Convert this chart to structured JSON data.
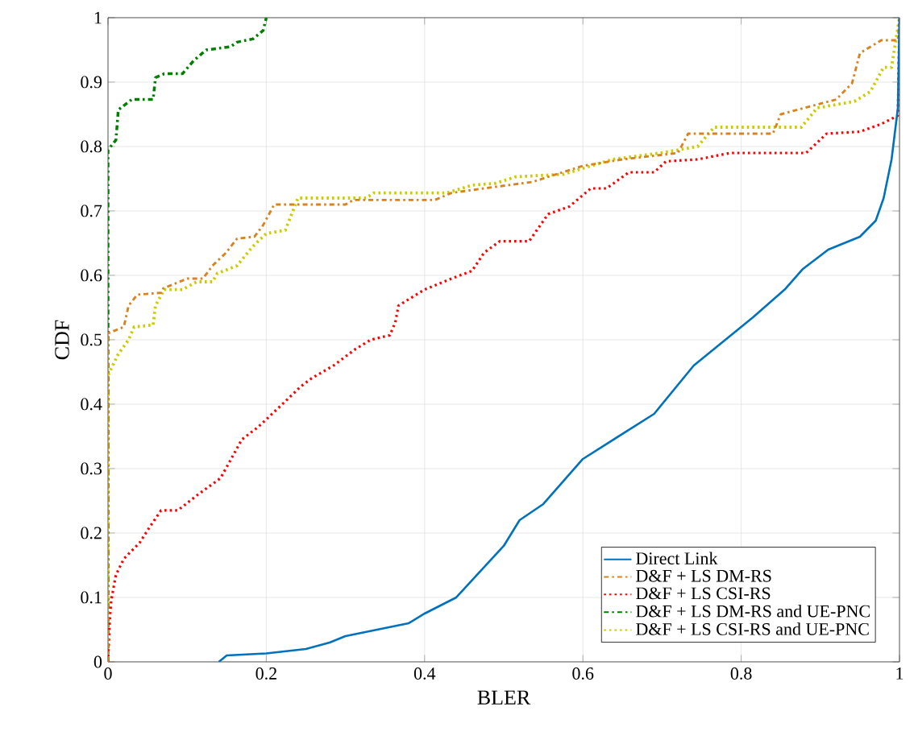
{
  "chart_data": {
    "type": "line",
    "xlabel": "BLER",
    "ylabel": "CDF",
    "xlim": [
      0,
      1
    ],
    "ylim": [
      0,
      1
    ],
    "xticks": [
      0,
      0.2,
      0.4,
      0.6,
      0.8,
      1
    ],
    "yticks": [
      0,
      0.1,
      0.2,
      0.3,
      0.4,
      0.5,
      0.6,
      0.7,
      0.8,
      0.9,
      1
    ],
    "grid": true,
    "legend": "bottom right",
    "marker": "none",
    "series": [
      {
        "name": "Direct Link",
        "color": "#0072bd",
        "line_style": "solid",
        "x": [
          0.14,
          0.15,
          0.2,
          0.25,
          0.28,
          0.3,
          0.34,
          0.38,
          0.4,
          0.44,
          0.47,
          0.5,
          0.52,
          0.55,
          0.6,
          0.69,
          0.74,
          0.79,
          0.815,
          0.855,
          0.878,
          0.91,
          0.95,
          0.97,
          0.98,
          0.99,
          0.998,
          1
        ],
        "values": [
          0,
          0.01,
          0.013,
          0.02,
          0.03,
          0.04,
          0.05,
          0.06,
          0.075,
          0.1,
          0.14,
          0.18,
          0.22,
          0.245,
          0.315,
          0.385,
          0.46,
          0.51,
          0.535,
          0.578,
          0.61,
          0.64,
          0.66,
          0.685,
          0.72,
          0.78,
          0.86,
          1
        ]
      },
      {
        "name": "D&F + LS DM-RS",
        "color": "#d9831f",
        "line_style": "dashdot",
        "x": [
          0,
          0,
          0.02,
          0.026,
          0.037,
          0.067,
          0.07,
          0.1,
          0.12,
          0.132,
          0.149,
          0.163,
          0.185,
          0.196,
          0.21,
          0.3,
          0.31,
          0.413,
          0.434,
          0.475,
          0.536,
          0.6,
          0.65,
          0.72,
          0.733,
          0.84,
          0.85,
          0.88,
          0.92,
          0.94,
          0.95,
          0.977,
          0.998,
          1
        ],
        "values": [
          0,
          0.51,
          0.52,
          0.553,
          0.57,
          0.573,
          0.58,
          0.595,
          0.595,
          0.615,
          0.635,
          0.657,
          0.66,
          0.678,
          0.71,
          0.71,
          0.717,
          0.717,
          0.728,
          0.735,
          0.745,
          0.77,
          0.78,
          0.79,
          0.82,
          0.82,
          0.85,
          0.86,
          0.873,
          0.898,
          0.945,
          0.965,
          0.965,
          1
        ]
      },
      {
        "name": "D&F + LS CSI-RS",
        "color": "#ff0000",
        "line_style": "dotted",
        "x": [
          0,
          0.002,
          0.004,
          0.01,
          0.02,
          0.04,
          0.053,
          0.067,
          0.088,
          0.114,
          0.142,
          0.152,
          0.169,
          0.19,
          0.216,
          0.244,
          0.257,
          0.285,
          0.312,
          0.332,
          0.356,
          0.363,
          0.367,
          0.4,
          0.434,
          0.46,
          0.475,
          0.495,
          0.532,
          0.556,
          0.583,
          0.61,
          0.63,
          0.658,
          0.69,
          0.705,
          0.745,
          0.786,
          0.882,
          0.908,
          0.95,
          0.977,
          0.998,
          1
        ],
        "values": [
          0,
          0.06,
          0.095,
          0.135,
          0.16,
          0.185,
          0.21,
          0.235,
          0.235,
          0.26,
          0.285,
          0.307,
          0.345,
          0.365,
          0.395,
          0.428,
          0.44,
          0.46,
          0.485,
          0.5,
          0.507,
          0.527,
          0.553,
          0.578,
          0.595,
          0.607,
          0.635,
          0.653,
          0.653,
          0.695,
          0.707,
          0.735,
          0.735,
          0.76,
          0.76,
          0.777,
          0.78,
          0.79,
          0.79,
          0.82,
          0.823,
          0.835,
          0.848,
          1
        ]
      },
      {
        "name": "D&F + LS DM-RS and UE-PNC",
        "color": "#008000",
        "line_style": "dashdot",
        "x": [
          0,
          0,
          0.01,
          0.013,
          0.03,
          0.057,
          0.06,
          0.071,
          0.094,
          0.108,
          0.124,
          0.155,
          0.163,
          0.183,
          0.196,
          0.2
        ],
        "values": [
          0,
          0.795,
          0.81,
          0.857,
          0.873,
          0.873,
          0.907,
          0.913,
          0.913,
          0.933,
          0.95,
          0.955,
          0.962,
          0.967,
          0.98,
          1
        ]
      },
      {
        "name": "D&F + LS CSI-RS and UE-PNC",
        "color": "#cccc00",
        "line_style": "dotted",
        "x": [
          0,
          0,
          0.013,
          0.026,
          0.033,
          0.057,
          0.06,
          0.071,
          0.094,
          0.112,
          0.132,
          0.138,
          0.163,
          0.183,
          0.2,
          0.224,
          0.24,
          0.326,
          0.336,
          0.428,
          0.46,
          0.49,
          0.515,
          0.576,
          0.637,
          0.698,
          0.745,
          0.766,
          0.876,
          0.896,
          0.943,
          0.963,
          0.98,
          0.99,
          1
        ],
        "values": [
          0,
          0.445,
          0.478,
          0.5,
          0.52,
          0.523,
          0.553,
          0.578,
          0.578,
          0.59,
          0.59,
          0.603,
          0.615,
          0.645,
          0.665,
          0.67,
          0.72,
          0.72,
          0.728,
          0.728,
          0.74,
          0.743,
          0.753,
          0.757,
          0.78,
          0.79,
          0.8,
          0.83,
          0.83,
          0.86,
          0.87,
          0.885,
          0.923,
          0.923,
          1
        ]
      }
    ]
  }
}
